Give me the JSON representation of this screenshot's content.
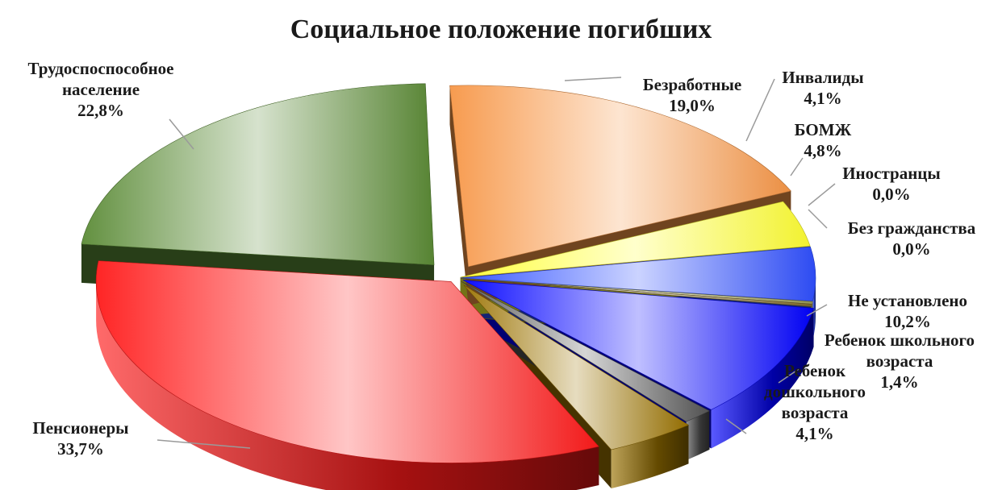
{
  "chart_data": {
    "type": "pie",
    "title": "Социальное положение погибших",
    "slices": [
      {
        "label": [
          "Безработные"
        ],
        "value_label": "19,0%",
        "value": 19.0,
        "color": "#f79646"
      },
      {
        "label": [
          "Инвалиды"
        ],
        "value_label": "4,1%",
        "value": 4.1,
        "color": "#ffff33"
      },
      {
        "label": [
          "БОМЖ"
        ],
        "value_label": "4,8%",
        "value": 4.8,
        "color": "#2f4fff"
      },
      {
        "label": [
          "Иностранцы"
        ],
        "value_label": "0,0%",
        "value": 0.0,
        "color": "#9a9a55"
      },
      {
        "label": [
          "Без гражданства"
        ],
        "value_label": "0,0%",
        "value": 0.0,
        "color": "#7f6a2a"
      },
      {
        "label": [
          "Не установлено"
        ],
        "value_label": "10,2%",
        "value": 10.2,
        "color": "#0000ff"
      },
      {
        "label": [
          "Ребенок школьного",
          "возраста"
        ],
        "value_label": "1,4%",
        "value": 1.4,
        "color": "#555555"
      },
      {
        "label": [
          "Ребенок",
          "дошкольного",
          "возраста"
        ],
        "value_label": "4,1%",
        "value": 4.1,
        "color": "#9a7200"
      },
      {
        "label": [
          "Пенсионеры"
        ],
        "value_label": "33,7%",
        "value": 33.7,
        "color": "#ff1a1a"
      },
      {
        "label": [
          "Трудоспоспособное",
          "население"
        ],
        "value_label": "22,8%",
        "value": 22.8,
        "color": "#5a8a35"
      }
    ],
    "legend": "none",
    "data_labels": "outside-with-leader-lines"
  }
}
